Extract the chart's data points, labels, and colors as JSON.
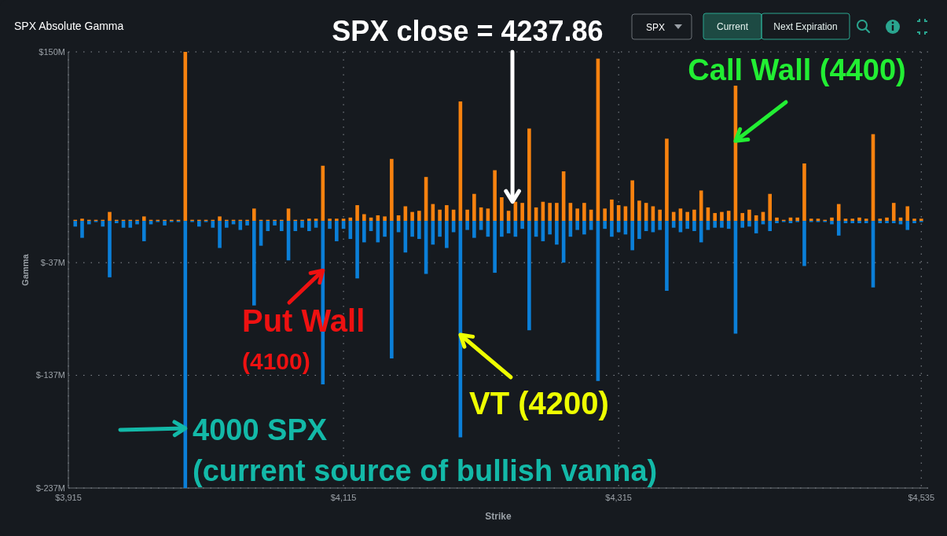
{
  "chart_data": {
    "type": "bar",
    "title": "SPX Absolute Gamma",
    "xlabel": "Strike",
    "ylabel": "Gamma",
    "x": [
      3920,
      3925,
      3930,
      3935,
      3940,
      3945,
      3950,
      3955,
      3960,
      3965,
      3970,
      3975,
      3980,
      3985,
      3990,
      3995,
      4000,
      4005,
      4010,
      4015,
      4020,
      4025,
      4030,
      4035,
      4040,
      4045,
      4050,
      4055,
      4060,
      4065,
      4070,
      4075,
      4080,
      4085,
      4090,
      4095,
      4100,
      4105,
      4110,
      4115,
      4120,
      4125,
      4130,
      4135,
      4140,
      4145,
      4150,
      4155,
      4160,
      4165,
      4170,
      4175,
      4180,
      4185,
      4190,
      4195,
      4200,
      4205,
      4210,
      4215,
      4220,
      4225,
      4230,
      4235,
      4240,
      4245,
      4250,
      4255,
      4260,
      4265,
      4270,
      4275,
      4280,
      4285,
      4290,
      4295,
      4300,
      4305,
      4310,
      4315,
      4320,
      4325,
      4330,
      4335,
      4340,
      4345,
      4350,
      4355,
      4360,
      4365,
      4370,
      4375,
      4380,
      4385,
      4390,
      4395,
      4400,
      4405,
      4410,
      4415,
      4420,
      4425,
      4430,
      4435,
      4440,
      4445,
      4450,
      4455,
      4460,
      4465,
      4470,
      4475,
      4480,
      4485,
      4490,
      4495,
      4500,
      4505,
      4510,
      4515,
      4520,
      4525,
      4530,
      4535
    ],
    "series": [
      {
        "color": "#f7820f",
        "values": [
          1,
          2,
          1,
          1,
          1,
          8,
          1,
          1,
          1,
          1,
          4,
          1,
          1,
          1,
          1,
          1,
          150,
          1,
          1,
          1,
          1,
          4,
          1,
          1,
          1,
          1,
          11,
          1,
          1,
          1,
          1,
          11,
          1,
          1,
          2,
          2,
          49,
          2,
          2,
          2,
          3,
          14,
          6,
          3,
          5,
          4,
          55,
          5,
          13,
          8,
          9,
          39,
          15,
          10,
          14,
          10,
          106,
          10,
          24,
          12,
          11,
          45,
          21,
          9,
          17,
          16,
          82,
          12,
          17,
          16,
          16,
          44,
          16,
          11,
          16,
          10,
          144,
          11,
          19,
          14,
          13,
          36,
          18,
          16,
          13,
          10,
          73,
          8,
          11,
          8,
          10,
          27,
          12,
          7,
          8,
          9,
          120,
          7,
          10,
          5,
          8,
          24,
          3,
          1,
          3,
          3,
          51,
          2,
          2,
          1,
          3,
          15,
          2,
          2,
          3,
          2,
          77,
          2,
          3,
          16,
          3,
          13,
          2,
          2
        ]
      },
      {
        "color": "#0b7fd8",
        "values": [
          -5,
          -15,
          -3,
          -1,
          -5,
          -50,
          -2,
          -6,
          -6,
          -3,
          -18,
          -3,
          -1,
          -4,
          -1,
          -1,
          -237,
          -1,
          -5,
          -1,
          -6,
          -24,
          -6,
          -3,
          -8,
          -4,
          -75,
          -22,
          -9,
          -4,
          -9,
          -35,
          -9,
          -6,
          -9,
          -6,
          -145,
          -7,
          -18,
          -7,
          -16,
          -51,
          -19,
          -9,
          -19,
          -14,
          -122,
          -10,
          -28,
          -14,
          -16,
          -47,
          -21,
          -14,
          -24,
          -10,
          -192,
          -8,
          -15,
          -8,
          -14,
          -46,
          -14,
          -11,
          -14,
          -7,
          -97,
          -14,
          -18,
          -12,
          -21,
          -37,
          -14,
          -8,
          -12,
          -8,
          -142,
          -7,
          -14,
          -10,
          -12,
          -26,
          -16,
          -9,
          -10,
          -8,
          -62,
          -6,
          -10,
          -7,
          -9,
          -19,
          -8,
          -6,
          -6,
          -7,
          -100,
          -6,
          -5,
          -11,
          -3,
          -9,
          -2,
          -1,
          -2,
          -1,
          -40,
          -1,
          -1,
          -1,
          -3,
          -13,
          -2,
          -2,
          -2,
          -2,
          -59,
          -2,
          -2,
          -2,
          -3,
          -8,
          -2,
          -1
        ]
      }
    ],
    "xlim": [
      3915,
      4540
    ],
    "xticks": [
      {
        "value": 3915,
        "label": "$3,915"
      },
      {
        "value": 4115,
        "label": "$4,115"
      },
      {
        "value": 4315,
        "label": "$4,315"
      },
      {
        "value": 4535,
        "label": "$4,535"
      }
    ],
    "ylim": [
      -237,
      150
    ],
    "yticks": [
      {
        "value": 150,
        "label": "$150M"
      },
      {
        "value": -37,
        "label": "$-37M"
      },
      {
        "value": -137,
        "label": "$-137M"
      },
      {
        "value": -237,
        "label": "$-237M"
      }
    ],
    "grid": true,
    "stacked": true,
    "annotations": [
      {
        "text": "SPX close = 4237.86",
        "x": 4237.86,
        "y": 17
      },
      {
        "text": "Call Wall (4400)",
        "x": 4400,
        "y": 71
      },
      {
        "text": "Put Wall",
        "x": 4100,
        "y": -44
      },
      "(4100)",
      {
        "text": "VT (4200)",
        "x": 4200,
        "y": -101
      },
      {
        "text": "4000 SPX",
        "x": 4000,
        "y": -184
      },
      "(current source of bullish vanna)",
      "SPX",
      "Current",
      "Next Expiration"
    ]
  }
}
